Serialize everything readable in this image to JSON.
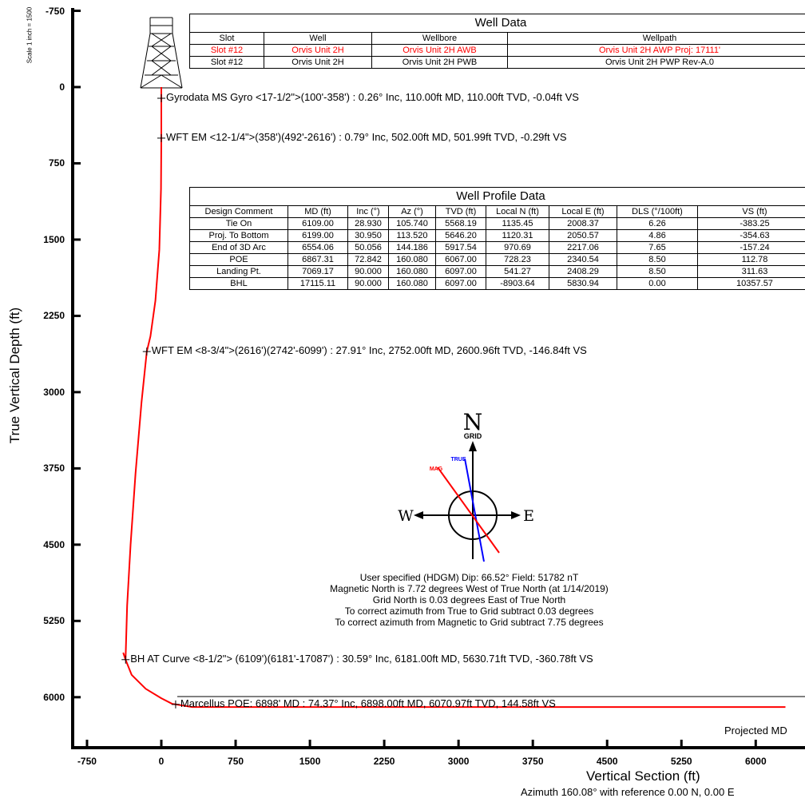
{
  "chart_data": {
    "type": "line",
    "xlabel": "Vertical Section (ft)",
    "ylabel": "True Vertical Depth (ft)",
    "scale_note": "Scale 1 inch = 1500",
    "azimuth_note": "Azimuth 160.08° with reference 0.00 N, 0.00 E",
    "xlim": [
      -900,
      6250
    ],
    "ylim": [
      -760,
      6600
    ],
    "y_inverted": true,
    "x_ticks": [
      "-750",
      "0",
      "750",
      "1500",
      "2250",
      "3000",
      "3750",
      "4500",
      "5250",
      "6000"
    ],
    "y_ticks": [
      "-750",
      "0",
      "750",
      "1500",
      "2250",
      "3000",
      "3750",
      "4500",
      "5250",
      "6000"
    ],
    "series": [
      {
        "color": "#ff0000",
        "x": [
          0,
          -0.04,
          -0.29,
          -3,
          -20,
          -60,
          -110,
          -146.84,
          -200,
          -260,
          -310,
          -345,
          -360.78,
          -383.25,
          -354.63,
          -300,
          -157.24,
          0,
          112.78,
          144.58,
          311.63,
          1500,
          3000,
          4500,
          6300
        ],
        "y": [
          0,
          110,
          502,
          1000,
          1600,
          2100,
          2450,
          2600.96,
          3100,
          3800,
          4500,
          5100,
          5630.71,
          5568.19,
          5646.2,
          5780,
          5917.54,
          6010,
          6067,
          6070.97,
          6097,
          6097,
          6097,
          6097,
          6097
        ]
      }
    ],
    "projected_line": {
      "x": [
        0,
        6300
      ],
      "y": [
        6080,
        6080
      ],
      "label": "Projected MD"
    },
    "annotations": [
      {
        "label": "Gyrodata MS Gyro <17-1/2\">(100'-358') : 0.26° Inc, 110.00ft MD, 110.00ft TVD, -0.04ft VS",
        "x": -0.04,
        "y": 110
      },
      {
        "label": "WFT EM <12-1/4\">(358')(492'-2616') : 0.79° Inc, 502.00ft MD, 501.99ft TVD, -0.29ft VS",
        "x": -0.29,
        "y": 502
      },
      {
        "label": "WFT EM <8-3/4\">(2616')(2742'-6099') : 27.91° Inc, 2752.00ft MD, 2600.96ft TVD, -146.84ft VS",
        "x": -146.84,
        "y": 2600.96
      },
      {
        "label": "BH AT Curve <8-1/2\"> (6109')(6181'-17087') : 30.59° Inc, 6181.00ft MD, 5630.71ft TVD, -360.78ft VS",
        "x": -360.78,
        "y": 5630.71
      },
      {
        "label": "Marcellus POE: 6898' MD : 74.37° Inc, 6898.00ft MD, 6070.97ft TVD, 144.58ft VS",
        "x": 144.58,
        "y": 6070.97
      }
    ]
  },
  "well_data": {
    "title": "Well Data",
    "headers": [
      "Slot",
      "Well",
      "Wellbore",
      "Wellpath"
    ],
    "rows": [
      [
        "Slot #12",
        "Orvis Unit 2H",
        "Orvis Unit 2H AWB",
        "Orvis Unit 2H AWP Proj: 17111'"
      ],
      [
        "Slot #12",
        "Orvis Unit 2H",
        "Orvis Unit 2H PWB",
        "Orvis Unit 2H PWP Rev-A.0"
      ]
    ],
    "highlight_color": "#ff0000"
  },
  "profile_data": {
    "title": "Well Profile Data",
    "headers": [
      "Design Comment",
      "MD (ft)",
      "Inc (°)",
      "Az (°)",
      "TVD (ft)",
      "Local N (ft)",
      "Local E (ft)",
      "DLS (°/100ft)",
      "VS (ft)"
    ],
    "rows": [
      [
        "Tie On",
        "6109.00",
        "28.930",
        "105.740",
        "5568.19",
        "1135.45",
        "2008.37",
        "6.26",
        "-383.25"
      ],
      [
        "Proj. To Bottom",
        "6199.00",
        "30.950",
        "113.520",
        "5646.20",
        "1120.31",
        "2050.57",
        "4.86",
        "-354.63"
      ],
      [
        "End of 3D Arc",
        "6554.06",
        "50.056",
        "144.186",
        "5917.54",
        "970.69",
        "2217.06",
        "7.65",
        "-157.24"
      ],
      [
        "POE",
        "6867.31",
        "72.842",
        "160.080",
        "6067.00",
        "728.23",
        "2340.54",
        "8.50",
        "112.78"
      ],
      [
        "Landing Pt.",
        "7069.17",
        "90.000",
        "160.080",
        "6097.00",
        "541.27",
        "2408.29",
        "8.50",
        "311.63"
      ],
      [
        "BHL",
        "17115.11",
        "90.000",
        "160.080",
        "6097.00",
        "-8903.64",
        "5830.94",
        "0.00",
        "10357.57"
      ]
    ]
  },
  "compass": {
    "north_label": "N",
    "grid_label": "GRID",
    "true_label": "TRUE",
    "mag_label": "MAG",
    "west_label": "W",
    "east_label": "E",
    "mag_color": "#ff0000",
    "true_color": "#0000ff",
    "notes": [
      "User specified (HDGM) Dip: 66.52°  Field: 51782 nT",
      "Magnetic North is 7.72 degrees West of True North (at 1/14/2019)",
      "Grid North is 0.03 degrees East of True North",
      "To correct azimuth from True to Grid subtract 0.03 degrees",
      "To correct azimuth from Magnetic to Grid subtract 7.75 degrees"
    ]
  }
}
